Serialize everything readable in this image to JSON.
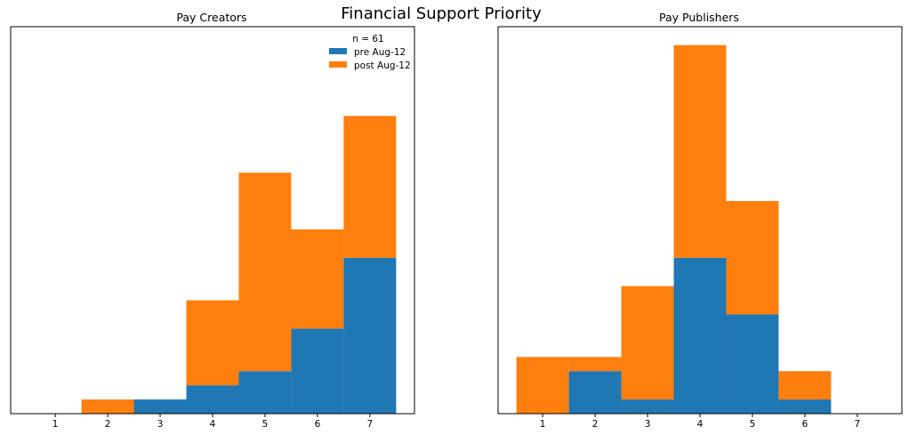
{
  "figure": {
    "title": "Financial Support Priority"
  },
  "chart_data": [
    {
      "type": "bar",
      "stacked": true,
      "title": "Pay Creators",
      "xlabel": "",
      "ylabel": "",
      "categories": [
        "1",
        "2",
        "3",
        "4",
        "5",
        "6",
        "7"
      ],
      "xlim": [
        0.15,
        7.85
      ],
      "ylim": [
        0,
        27.3
      ],
      "y_ticks_shown": false,
      "series": [
        {
          "name": "pre Aug-12",
          "color": "#1f77b4",
          "values": [
            0,
            0,
            1,
            2,
            3,
            6,
            11
          ]
        },
        {
          "name": "post Aug-12",
          "color": "#ff7f0e",
          "values": [
            0,
            1,
            0,
            6,
            14,
            7,
            10
          ]
        }
      ],
      "legend": {
        "title": "n = 61",
        "location": "top-right",
        "entries": [
          "pre Aug-12",
          "post Aug-12"
        ]
      },
      "grid": false
    },
    {
      "type": "bar",
      "stacked": true,
      "title": "Pay Publishers",
      "xlabel": "",
      "ylabel": "",
      "categories": [
        "1",
        "2",
        "3",
        "4",
        "5",
        "6",
        "7"
      ],
      "xlim": [
        0.15,
        7.85
      ],
      "ylim": [
        0,
        27.3
      ],
      "y_ticks_shown": false,
      "series": [
        {
          "name": "pre Aug-12",
          "color": "#1f77b4",
          "values": [
            0,
            3,
            1,
            11,
            7,
            1,
            0
          ]
        },
        {
          "name": "post Aug-12",
          "color": "#ff7f0e",
          "values": [
            4,
            1,
            8,
            15,
            8,
            2,
            0
          ]
        }
      ],
      "grid": false
    }
  ]
}
